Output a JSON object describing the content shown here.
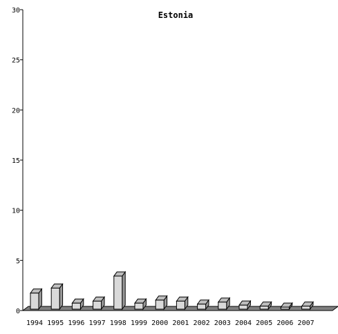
{
  "chart_data": {
    "type": "bar",
    "title": "Estonia",
    "xlabel": "",
    "ylabel": "",
    "categories": [
      "1994",
      "1995",
      "1996",
      "1997",
      "1998",
      "1999",
      "2000",
      "2001",
      "2002",
      "2003",
      "2004",
      "2005",
      "2006",
      "2007"
    ],
    "values": [
      1.6,
      2.1,
      0.6,
      0.8,
      3.3,
      0.6,
      0.9,
      0.8,
      0.5,
      0.7,
      0.4,
      0.3,
      0.2,
      0.3
    ],
    "ylim": [
      0,
      30
    ],
    "yticks": [
      0,
      5,
      10,
      15,
      20,
      25,
      30
    ],
    "grid": false,
    "style": "3d",
    "colors": {
      "bar_face": "#d9d9d9",
      "bar_top": "#bdbdbd",
      "bar_side": "#9a9a9a",
      "floor": "#808080",
      "stroke": "#000000"
    }
  }
}
